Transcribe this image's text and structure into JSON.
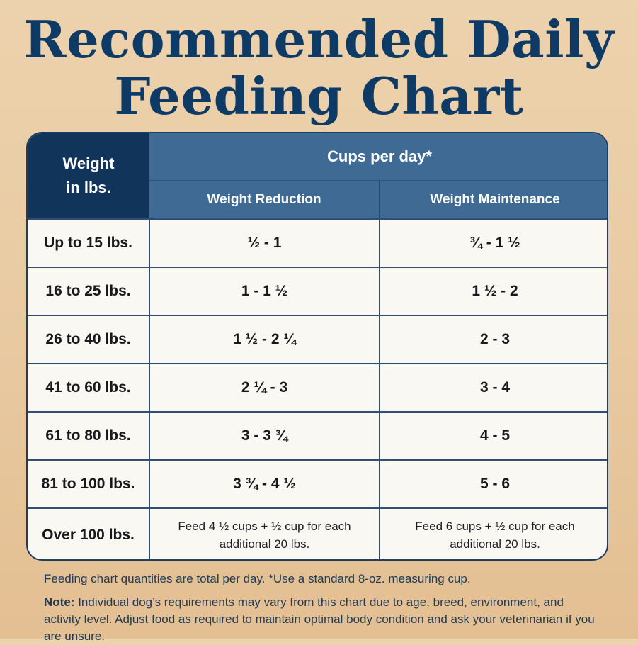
{
  "title": {
    "line1": "Recommended Daily",
    "line2": "Feeding Chart"
  },
  "table": {
    "weight_header": {
      "line1": "Weight",
      "line2": "in lbs."
    },
    "cups_header": "Cups per day*",
    "col_reduction": "Weight Reduction",
    "col_maintenance": "Weight Maintenance",
    "rows": [
      {
        "weight": "Up to 15 lbs.",
        "reduction": "½ - 1",
        "maintenance": "¾ - 1 ½"
      },
      {
        "weight": "16 to 25 lbs.",
        "reduction": "1 - 1 ½",
        "maintenance": "1 ½ - 2"
      },
      {
        "weight": "26 to 40 lbs.",
        "reduction": "1 ½ - 2 ¼",
        "maintenance": "2 - 3"
      },
      {
        "weight": "41 to 60 lbs.",
        "reduction": "2 ¼ - 3",
        "maintenance": "3 - 4"
      },
      {
        "weight": "61 to 80 lbs.",
        "reduction": "3 - 3 ¾",
        "maintenance": "4 - 5"
      },
      {
        "weight": "81 to 100 lbs.",
        "reduction": "3 ¾ - 4 ½",
        "maintenance": "5 - 6"
      },
      {
        "weight": "Over 100 lbs.",
        "reduction": {
          "line1": "Feed 4 ½ cups + ½ cup for each",
          "line2": "additional 20 lbs."
        },
        "maintenance": {
          "line1": "Feed 6 cups + ½ cup for each",
          "line2": "additional 20 lbs."
        }
      }
    ]
  },
  "footer": {
    "quantities": "Feeding chart quantities are total per day. *Use a standard 8-oz. measuring cup.",
    "note_label": "Note:",
    "note_text": "Individual dog’s requirements may vary from this chart due to age, breed, environment, and activity level. Adjust food as required to maintain optimal body condition and ask your veterinarian if you are unsure."
  },
  "colors": {
    "title": "#0e3a66",
    "header_dark": "#11345b",
    "header_mid": "#3e6a93",
    "table_border": "#1f3d63",
    "cell_bg": "#faf8f2",
    "background": "#e9cba3"
  }
}
